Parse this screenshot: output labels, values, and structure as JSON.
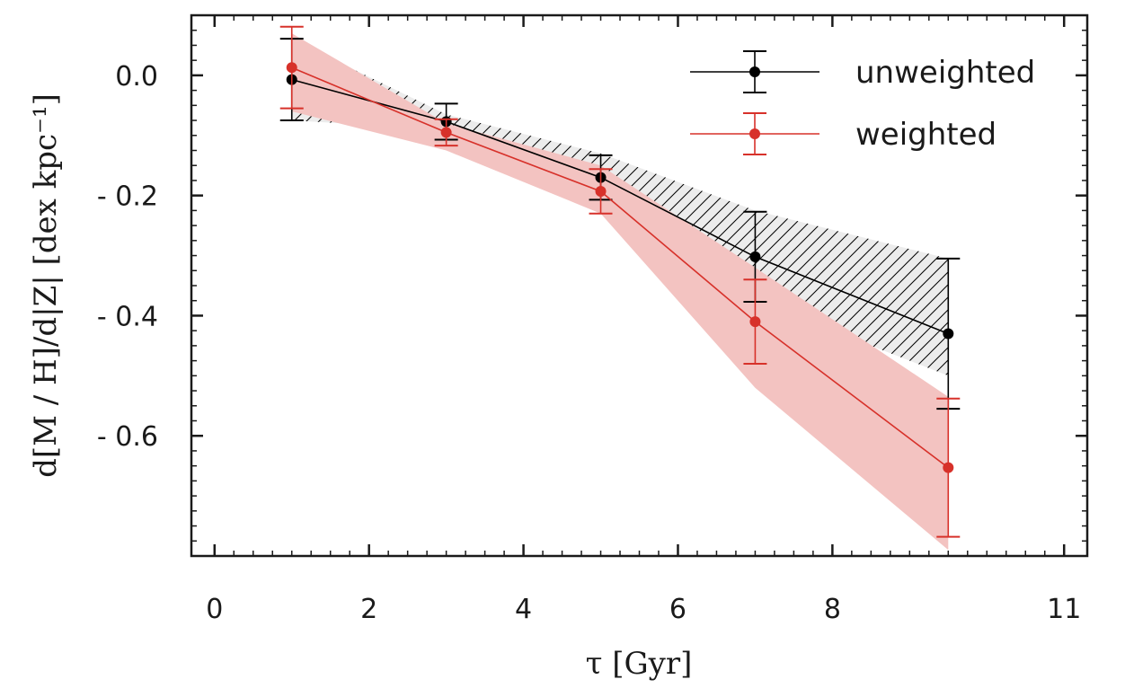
{
  "chart_data": {
    "type": "line",
    "xlabel": "τ [Gyr]",
    "ylabel": "d[M / H]/d|Z| [dex kpc⁻¹]",
    "xlim": [
      -0.3,
      11.3
    ],
    "ylim": [
      -0.8,
      0.1
    ],
    "x_ticks": [
      0,
      2,
      4,
      6,
      8,
      11
    ],
    "x_tick_labels": [
      "0",
      "2",
      "4",
      "6",
      "8",
      "11"
    ],
    "y_ticks": [
      0.0,
      -0.2,
      -0.4,
      -0.6
    ],
    "y_tick_labels": [
      "0.0",
      "- 0.2",
      "- 0.4",
      "- 0.6"
    ],
    "legend_position": "top-right",
    "grid": false,
    "series": [
      {
        "name": "unweighted",
        "color": "#000000",
        "band_fill": "#ececec",
        "band_hatch": "diagonal",
        "x": [
          1,
          3,
          5,
          7,
          9.5
        ],
        "y": [
          -0.007,
          -0.077,
          -0.17,
          -0.302,
          -0.43
        ],
        "err_low": [
          0.068,
          0.03,
          0.037,
          0.075,
          0.125
        ],
        "err_high": [
          0.068,
          0.03,
          0.037,
          0.075,
          0.125
        ],
        "band_low": [
          -0.075,
          -0.09,
          -0.21,
          -0.375,
          -0.5
        ],
        "band_high": [
          0.06,
          -0.065,
          -0.13,
          -0.225,
          -0.305
        ]
      },
      {
        "name": "weighted",
        "color": "#d7312a",
        "band_fill": "#f3c3c1",
        "band_hatch": "none",
        "x": [
          1,
          3,
          5,
          7,
          9.5
        ],
        "y": [
          0.013,
          -0.095,
          -0.193,
          -0.41,
          -0.653
        ],
        "err_low": [
          0.068,
          0.022,
          0.037,
          0.07,
          0.115
        ],
        "err_high": [
          0.068,
          0.022,
          0.037,
          0.07,
          0.115
        ],
        "band_low": [
          -0.06,
          -0.125,
          -0.23,
          -0.52,
          -0.79
        ],
        "band_high": [
          0.07,
          -0.08,
          -0.15,
          -0.32,
          -0.535
        ]
      }
    ]
  }
}
